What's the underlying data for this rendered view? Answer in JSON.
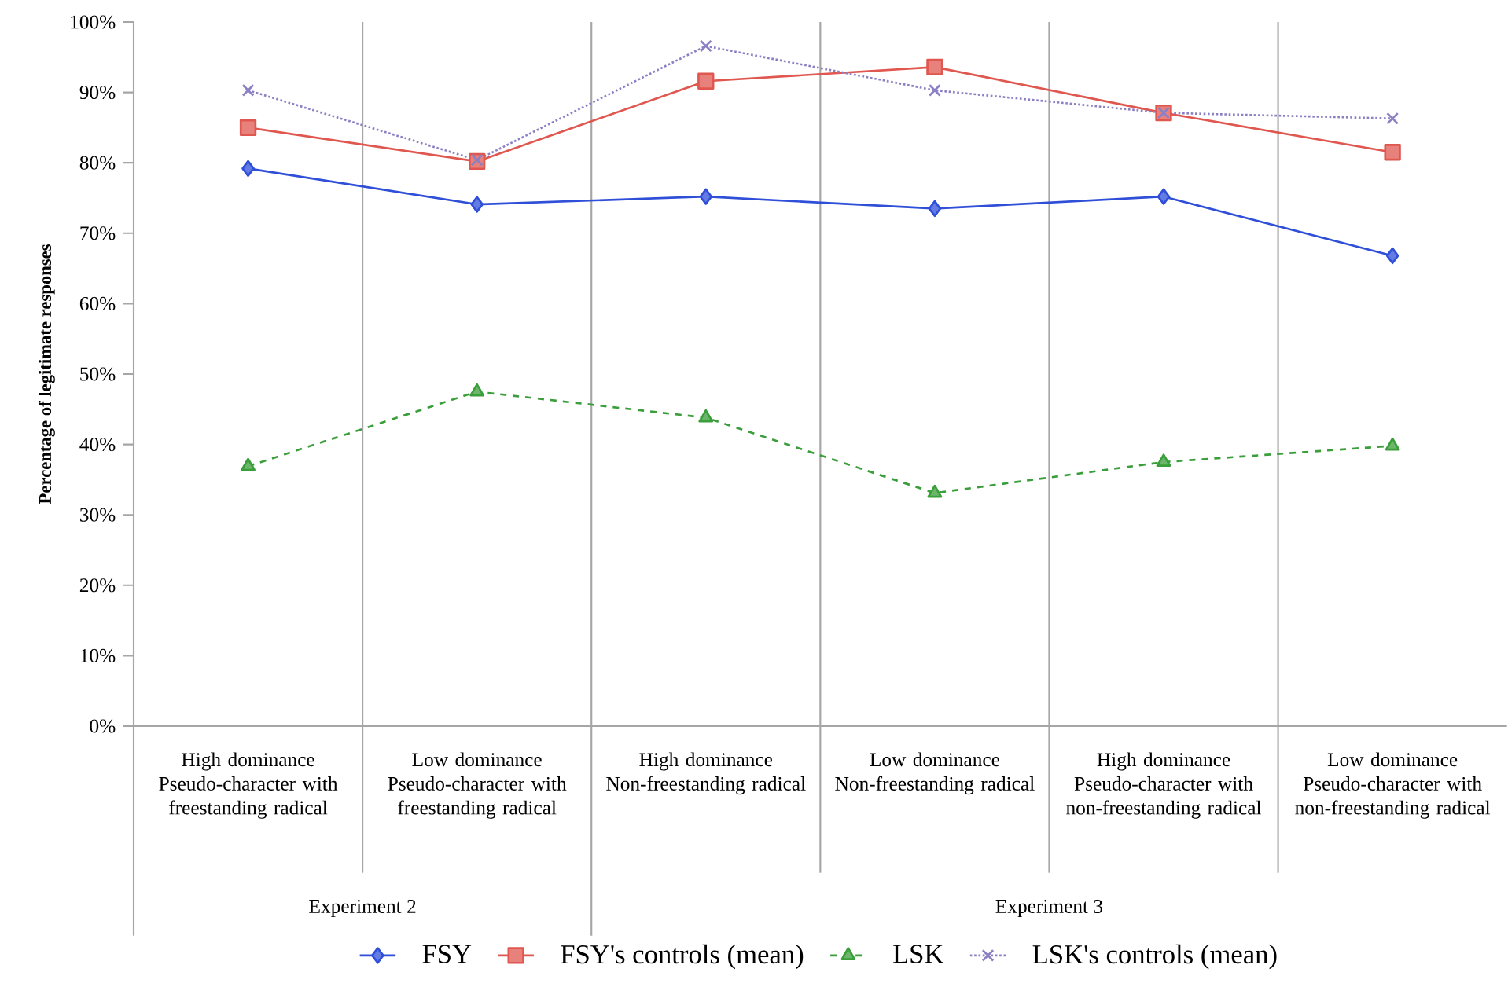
{
  "chart_data": {
    "type": "line",
    "ylabel": "Percentage of legitimate responses",
    "categories": [
      "High dominance Pseudo-character with freestanding radical",
      "Low dominance Pseudo-character with freestanding radical",
      "High dominance Non-freestanding radical",
      "Low dominance Non-freestanding radical",
      "High dominance Pseudo-character with non-freestanding radical",
      "Low dominance Pseudo-character with non-freestanding radical"
    ],
    "series": [
      {
        "name": "FSY",
        "color": "#2f4fd8",
        "values": [
          79.2,
          74.1,
          75.2,
          73.5,
          75.2,
          66.8
        ],
        "marker": "diamond",
        "line_style": "solid"
      },
      {
        "name": "FSY's controls (mean)",
        "color": "#e0574f",
        "values": [
          85.0,
          80.2,
          91.6,
          93.6,
          87.1,
          81.5
        ],
        "marker": "square",
        "line_style": "solid"
      },
      {
        "name": "LSK",
        "color": "#3a9e3a",
        "values": [
          36.9,
          47.5,
          43.8,
          33.1,
          37.5,
          39.8
        ],
        "marker": "triangle",
        "line_style": "dashed"
      },
      {
        "name": "LSK's controls (mean)",
        "color": "#8c80c4",
        "values": [
          90.3,
          80.4,
          96.6,
          90.3,
          87.1,
          86.3
        ],
        "marker": "cross",
        "line_style": "dotted"
      }
    ],
    "ylim": [
      0,
      100
    ],
    "yticks": [
      {
        "value": 0,
        "label": "0%"
      },
      {
        "value": 10,
        "label": "10%"
      },
      {
        "value": 20,
        "label": "20%"
      },
      {
        "value": 30,
        "label": "30%"
      },
      {
        "value": 40,
        "label": "40%"
      },
      {
        "value": 50,
        "label": "50%"
      },
      {
        "value": 60,
        "label": "60%"
      },
      {
        "value": 70,
        "label": "70%"
      },
      {
        "value": 80,
        "label": "80%"
      },
      {
        "value": 90,
        "label": "90%"
      },
      {
        "value": 100,
        "label": "100%"
      }
    ],
    "annotations": [
      "Experiment 2",
      "Experiment 3"
    ],
    "grid": "x",
    "legend": "bottom"
  }
}
